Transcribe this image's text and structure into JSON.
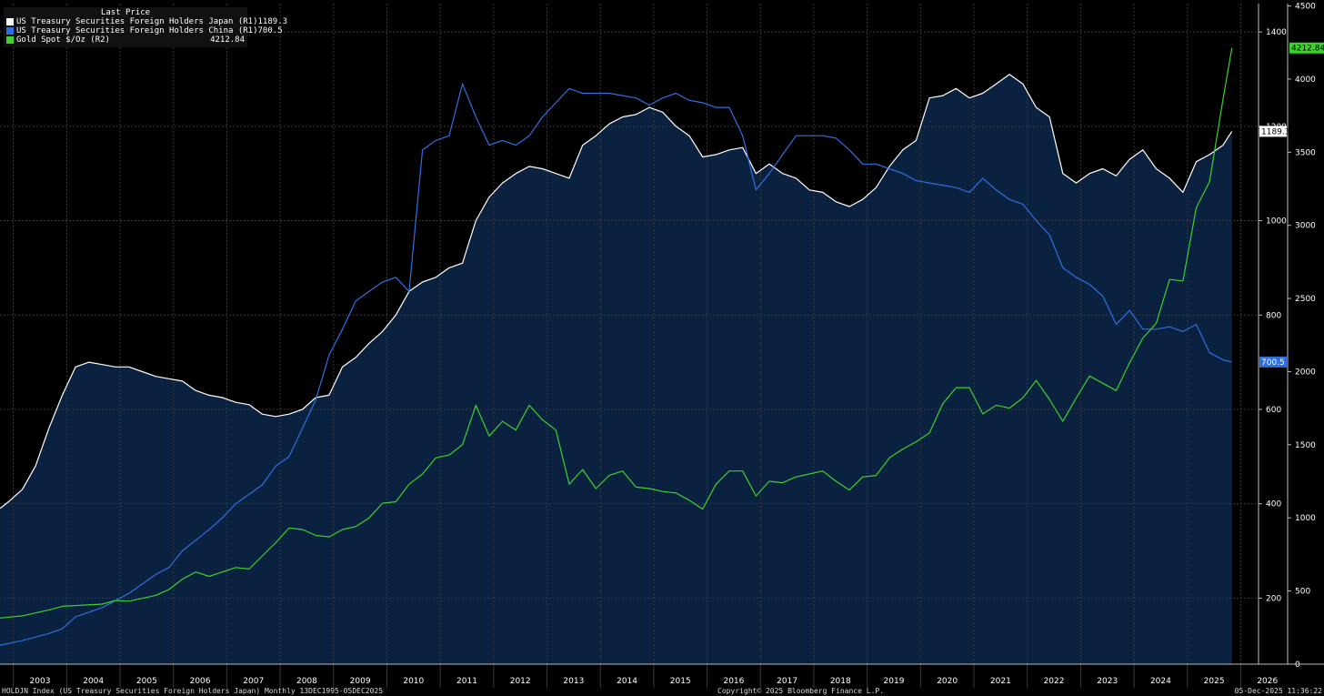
{
  "legend": {
    "header": "Last Price",
    "items": [
      {
        "label": "US Treasury Securities Foreign Holders Japan  (R1)",
        "value": "1189.3",
        "color": "#ffffff"
      },
      {
        "label": "US Treasury Securities Foreign Holders China  (R1)",
        "value": "700.5",
        "color": "#2f6fe0"
      },
      {
        "label": "Gold Spot $/Oz  (R2)",
        "value": "4212.84",
        "color": "#3ed12d"
      }
    ]
  },
  "footer": {
    "left": "HOLDJN Index (US Treasury Securities Foreign Holders Japan) Monthly 13DEC1995-05DEC2025",
    "center": "Copyright© 2025 Bloomberg Finance L.P.",
    "right": "05-Dec-2025 11:36:22"
  },
  "end_labels": {
    "japan": "1189.3",
    "china": "700.5",
    "gold": "4212.84"
  },
  "chart_data": {
    "type": "line",
    "x_ticks": [
      "2003",
      "2004",
      "2005",
      "2006",
      "2007",
      "2008",
      "2009",
      "2010",
      "2011",
      "2012",
      "2013",
      "2014",
      "2015",
      "2016",
      "2017",
      "2018",
      "2019",
      "2020",
      "2021",
      "2022",
      "2023",
      "2024",
      "2025",
      "2026"
    ],
    "xlim": [
      "2002-10",
      "2026-05"
    ],
    "axes": {
      "R1": {
        "ylim": [
          60,
          1460
        ],
        "ticks": [
          200,
          400,
          600,
          800,
          1000,
          1200,
          1400
        ]
      },
      "R2": {
        "ylim": [
          -0.5,
          4516
        ],
        "ticks": [
          0,
          500,
          1000,
          1500,
          2000,
          2500,
          3000,
          3500,
          4000,
          4500
        ]
      }
    },
    "grid": true,
    "legend_position": "top-left",
    "series": [
      {
        "name": "US Treasury Securities Foreign Holders Japan",
        "axis": "R1",
        "color": "#ffffff",
        "fill": true,
        "points": [
          [
            "2002-10",
            390
          ],
          [
            "2002-12",
            405
          ],
          [
            "2003-03",
            430
          ],
          [
            "2003-06",
            480
          ],
          [
            "2003-09",
            560
          ],
          [
            "2003-12",
            630
          ],
          [
            "2004-03",
            690
          ],
          [
            "2004-06",
            700
          ],
          [
            "2004-09",
            695
          ],
          [
            "2004-12",
            690
          ],
          [
            "2005-03",
            690
          ],
          [
            "2005-06",
            680
          ],
          [
            "2005-09",
            670
          ],
          [
            "2005-12",
            665
          ],
          [
            "2006-03",
            660
          ],
          [
            "2006-06",
            640
          ],
          [
            "2006-09",
            630
          ],
          [
            "2006-12",
            625
          ],
          [
            "2007-03",
            615
          ],
          [
            "2007-06",
            610
          ],
          [
            "2007-09",
            590
          ],
          [
            "2007-12",
            585
          ],
          [
            "2008-03",
            590
          ],
          [
            "2008-06",
            600
          ],
          [
            "2008-09",
            625
          ],
          [
            "2008-12",
            630
          ],
          [
            "2009-03",
            690
          ],
          [
            "2009-06",
            710
          ],
          [
            "2009-09",
            740
          ],
          [
            "2009-12",
            765
          ],
          [
            "2010-03",
            800
          ],
          [
            "2010-06",
            850
          ],
          [
            "2010-09",
            870
          ],
          [
            "2010-12",
            880
          ],
          [
            "2011-03",
            900
          ],
          [
            "2011-06",
            910
          ],
          [
            "2011-09",
            1000
          ],
          [
            "2011-12",
            1050
          ],
          [
            "2012-03",
            1080
          ],
          [
            "2012-06",
            1100
          ],
          [
            "2012-09",
            1115
          ],
          [
            "2012-12",
            1110
          ],
          [
            "2013-03",
            1100
          ],
          [
            "2013-06",
            1090
          ],
          [
            "2013-09",
            1160
          ],
          [
            "2013-12",
            1180
          ],
          [
            "2014-03",
            1205
          ],
          [
            "2014-06",
            1220
          ],
          [
            "2014-09",
            1225
          ],
          [
            "2014-12",
            1240
          ],
          [
            "2015-03",
            1230
          ],
          [
            "2015-06",
            1200
          ],
          [
            "2015-09",
            1180
          ],
          [
            "2015-12",
            1135
          ],
          [
            "2016-03",
            1140
          ],
          [
            "2016-06",
            1150
          ],
          [
            "2016-09",
            1155
          ],
          [
            "2016-12",
            1100
          ],
          [
            "2017-03",
            1120
          ],
          [
            "2017-06",
            1100
          ],
          [
            "2017-09",
            1090
          ],
          [
            "2017-12",
            1065
          ],
          [
            "2018-03",
            1060
          ],
          [
            "2018-06",
            1040
          ],
          [
            "2018-09",
            1030
          ],
          [
            "2018-12",
            1045
          ],
          [
            "2019-03",
            1070
          ],
          [
            "2019-06",
            1115
          ],
          [
            "2019-09",
            1150
          ],
          [
            "2019-12",
            1170
          ],
          [
            "2020-03",
            1260
          ],
          [
            "2020-06",
            1265
          ],
          [
            "2020-09",
            1280
          ],
          [
            "2020-12",
            1260
          ],
          [
            "2021-03",
            1270
          ],
          [
            "2021-06",
            1290
          ],
          [
            "2021-09",
            1310
          ],
          [
            "2021-12",
            1290
          ],
          [
            "2022-03",
            1240
          ],
          [
            "2022-06",
            1220
          ],
          [
            "2022-09",
            1100
          ],
          [
            "2022-12",
            1080
          ],
          [
            "2023-03",
            1100
          ],
          [
            "2023-06",
            1110
          ],
          [
            "2023-09",
            1095
          ],
          [
            "2023-12",
            1130
          ],
          [
            "2024-03",
            1150
          ],
          [
            "2024-06",
            1110
          ],
          [
            "2024-09",
            1090
          ],
          [
            "2024-12",
            1060
          ],
          [
            "2025-03",
            1125
          ],
          [
            "2025-06",
            1140
          ],
          [
            "2025-09",
            1160
          ],
          [
            "2025-11",
            1189.3
          ]
        ]
      },
      {
        "name": "US Treasury Securities Foreign Holders China",
        "axis": "R1",
        "color": "#2f6fe0",
        "points": [
          [
            "2002-10",
            100
          ],
          [
            "2003-03",
            110
          ],
          [
            "2003-09",
            125
          ],
          [
            "2003-12",
            135
          ],
          [
            "2004-03",
            160
          ],
          [
            "2004-09",
            180
          ],
          [
            "2005-03",
            210
          ],
          [
            "2005-09",
            250
          ],
          [
            "2005-12",
            265
          ],
          [
            "2006-03",
            300
          ],
          [
            "2006-09",
            345
          ],
          [
            "2006-12",
            370
          ],
          [
            "2007-03",
            400
          ],
          [
            "2007-09",
            440
          ],
          [
            "2007-12",
            480
          ],
          [
            "2008-03",
            500
          ],
          [
            "2008-06",
            560
          ],
          [
            "2008-09",
            620
          ],
          [
            "2008-12",
            715
          ],
          [
            "2009-03,",
            770
          ],
          [
            "2009-06",
            830
          ],
          [
            "2009-09",
            850
          ],
          [
            "2009-12",
            870
          ],
          [
            "2010-03",
            880
          ],
          [
            "2010-06",
            850
          ],
          [
            "2010-09",
            1150
          ],
          [
            "2010-12",
            1170
          ],
          [
            "2011-03",
            1180
          ],
          [
            "2011-06",
            1290
          ],
          [
            "2011-09",
            1220
          ],
          [
            "2011-12",
            1160
          ],
          [
            "2012-03",
            1170
          ],
          [
            "2012-06",
            1160
          ],
          [
            "2012-09",
            1180
          ],
          [
            "2012-12",
            1220
          ],
          [
            "2013-03",
            1250
          ],
          [
            "2013-06",
            1280
          ],
          [
            "2013-09",
            1270
          ],
          [
            "2013-12",
            1270
          ],
          [
            "2014-03",
            1270
          ],
          [
            "2014-06",
            1265
          ],
          [
            "2014-09",
            1260
          ],
          [
            "2014-12",
            1245
          ],
          [
            "2015-03",
            1260
          ],
          [
            "2015-06",
            1270
          ],
          [
            "2015-09",
            1255
          ],
          [
            "2015-12",
            1250
          ],
          [
            "2016-03",
            1240
          ],
          [
            "2016-06",
            1240
          ],
          [
            "2016-09",
            1180
          ],
          [
            "2016-12",
            1065
          ],
          [
            "2017-03",
            1100
          ],
          [
            "2017-06",
            1140
          ],
          [
            "2017-09",
            1180
          ],
          [
            "2017-12",
            1180
          ],
          [
            "2018-03",
            1180
          ],
          [
            "2018-06",
            1175
          ],
          [
            "2018-09",
            1150
          ],
          [
            "2018-12",
            1120
          ],
          [
            "2019-03",
            1120
          ],
          [
            "2019-06",
            1110
          ],
          [
            "2019-09",
            1100
          ],
          [
            "2019-12",
            1085
          ],
          [
            "2020-03",
            1080
          ],
          [
            "2020-06",
            1075
          ],
          [
            "2020-09",
            1070
          ],
          [
            "2020-12",
            1060
          ],
          [
            "2021-03",
            1090
          ],
          [
            "2021-06",
            1065
          ],
          [
            "2021-09",
            1045
          ],
          [
            "2021-12",
            1035
          ],
          [
            "2022-03",
            1000
          ],
          [
            "2022-06",
            970
          ],
          [
            "2022-09",
            900
          ],
          [
            "2022-12",
            880
          ],
          [
            "2023-03",
            865
          ],
          [
            "2023-06",
            840
          ],
          [
            "2023-09",
            780
          ],
          [
            "2023-12",
            810
          ],
          [
            "2024-03",
            770
          ],
          [
            "2024-06",
            770
          ],
          [
            "2024-09",
            775
          ],
          [
            "2024-12",
            765
          ],
          [
            "2025-03",
            780
          ],
          [
            "2025-06",
            720
          ],
          [
            "2025-09",
            705
          ],
          [
            "2025-11",
            700.5
          ]
        ]
      },
      {
        "name": "Gold Spot $/Oz",
        "axis": "R2",
        "color": "#3ed12d",
        "points": [
          [
            "2002-10",
            315
          ],
          [
            "2003-03",
            330
          ],
          [
            "2003-09",
            370
          ],
          [
            "2003-12",
            395
          ],
          [
            "2004-03",
            400
          ],
          [
            "2004-09",
            410
          ],
          [
            "2004-12",
            435
          ],
          [
            "2005-03",
            430
          ],
          [
            "2005-09",
            470
          ],
          [
            "2005-12",
            510
          ],
          [
            "2006-03",
            580
          ],
          [
            "2006-06",
            630
          ],
          [
            "2006-09",
            600
          ],
          [
            "2006-12",
            630
          ],
          [
            "2007-03",
            660
          ],
          [
            "2007-06",
            650
          ],
          [
            "2007-09",
            740
          ],
          [
            "2007-12",
            830
          ],
          [
            "2008-03",
            930
          ],
          [
            "2008-06",
            920
          ],
          [
            "2008-09",
            880
          ],
          [
            "2008-12",
            870
          ],
          [
            "2009-03",
            920
          ],
          [
            "2009-06",
            940
          ],
          [
            "2009-09",
            1000
          ],
          [
            "2009-12",
            1100
          ],
          [
            "2010-03",
            1110
          ],
          [
            "2010-06",
            1230
          ],
          [
            "2010-09",
            1300
          ],
          [
            "2010-12",
            1410
          ],
          [
            "2011-03",
            1430
          ],
          [
            "2011-06",
            1500
          ],
          [
            "2011-09",
            1770
          ],
          [
            "2011-12",
            1560
          ],
          [
            "2012-03",
            1660
          ],
          [
            "2012-06",
            1600
          ],
          [
            "2012-09",
            1770
          ],
          [
            "2012-12",
            1670
          ],
          [
            "2013-03",
            1600
          ],
          [
            "2013-06",
            1230
          ],
          [
            "2013-09",
            1330
          ],
          [
            "2013-12",
            1200
          ],
          [
            "2014-03",
            1290
          ],
          [
            "2014-06",
            1320
          ],
          [
            "2014-09",
            1210
          ],
          [
            "2014-12",
            1200
          ],
          [
            "2015-03",
            1180
          ],
          [
            "2015-06",
            1170
          ],
          [
            "2015-09",
            1120
          ],
          [
            "2015-12",
            1060
          ],
          [
            "2016-03",
            1230
          ],
          [
            "2016-06",
            1320
          ],
          [
            "2016-09",
            1320
          ],
          [
            "2016-12",
            1150
          ],
          [
            "2017-03",
            1250
          ],
          [
            "2017-06",
            1240
          ],
          [
            "2017-09",
            1280
          ],
          [
            "2017-12",
            1300
          ],
          [
            "2018-03",
            1320
          ],
          [
            "2018-06",
            1250
          ],
          [
            "2018-09",
            1190
          ],
          [
            "2018-12",
            1280
          ],
          [
            "2019-03",
            1290
          ],
          [
            "2019-06",
            1410
          ],
          [
            "2019-09",
            1470
          ],
          [
            "2019-12",
            1520
          ],
          [
            "2020-03",
            1580
          ],
          [
            "2020-06",
            1780
          ],
          [
            "2020-09",
            1890
          ],
          [
            "2020-12",
            1890
          ],
          [
            "2021-03",
            1710
          ],
          [
            "2021-06",
            1770
          ],
          [
            "2021-09",
            1750
          ],
          [
            "2021-12",
            1820
          ],
          [
            "2022-03",
            1940
          ],
          [
            "2022-06",
            1810
          ],
          [
            "2022-09",
            1660
          ],
          [
            "2022-12",
            1820
          ],
          [
            "2023-03",
            1970
          ],
          [
            "2023-06",
            1920
          ],
          [
            "2023-09",
            1870
          ],
          [
            "2023-12",
            2060
          ],
          [
            "2024-03",
            2230
          ],
          [
            "2024-06",
            2330
          ],
          [
            "2024-09",
            2630
          ],
          [
            "2024-12",
            2620
          ],
          [
            "2025-03",
            3120
          ],
          [
            "2025-06",
            3300
          ],
          [
            "2025-09",
            3860
          ],
          [
            "2025-11",
            4212.84
          ]
        ]
      }
    ]
  }
}
